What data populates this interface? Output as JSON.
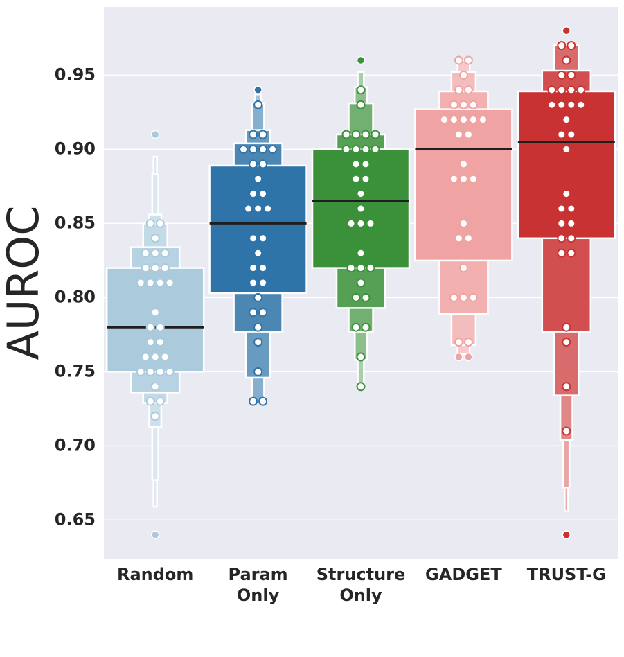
{
  "chart_data": {
    "type": "boxen",
    "ylabel": "AUROC",
    "categories": [
      "Random",
      "Param Only",
      "Structure Only",
      "GADGET",
      "TRUST-G"
    ],
    "ylim": [
      0.624,
      0.996
    ],
    "yticks": [
      0.65,
      {
        "value": 0.7,
        "label": "0.70"
      },
      0.75,
      {
        "value": 0.8,
        "label": "0.80"
      },
      0.85,
      {
        "value": 0.9,
        "label": "0.90"
      },
      0.95
    ],
    "grid": true,
    "boxes": [
      {
        "color": "#abcbdd",
        "median": 0.78,
        "levels": [
          [
            0.75,
            0.82
          ],
          [
            0.736,
            0.834
          ],
          [
            0.729,
            0.85
          ],
          [
            0.713,
            0.856
          ],
          [
            0.677,
            0.883
          ],
          [
            0.659,
            0.895
          ]
        ],
        "points": [
          0.91,
          0.85,
          0.85,
          0.84,
          0.83,
          0.83,
          0.83,
          0.82,
          0.82,
          0.82,
          0.81,
          0.81,
          0.81,
          0.81,
          0.79,
          0.78,
          0.78,
          0.77,
          0.77,
          0.76,
          0.76,
          0.76,
          0.75,
          0.75,
          0.75,
          0.75,
          0.74,
          0.73,
          0.73,
          0.72,
          0.64
        ]
      },
      {
        "color": "#2f74a8",
        "median": 0.85,
        "levels": [
          [
            0.803,
            0.889
          ],
          [
            0.777,
            0.904
          ],
          [
            0.746,
            0.913
          ],
          [
            0.73,
            0.931
          ],
          [
            0.73,
            0.937
          ]
        ],
        "points": [
          0.94,
          0.93,
          0.91,
          0.91,
          0.9,
          0.9,
          0.9,
          0.9,
          0.89,
          0.89,
          0.88,
          0.87,
          0.87,
          0.86,
          0.86,
          0.86,
          0.84,
          0.84,
          0.83,
          0.82,
          0.82,
          0.81,
          0.81,
          0.8,
          0.79,
          0.79,
          0.78,
          0.77,
          0.75,
          0.73,
          0.73
        ]
      },
      {
        "color": "#3b913a",
        "median": 0.865,
        "levels": [
          [
            0.82,
            0.9
          ],
          [
            0.793,
            0.91
          ],
          [
            0.777,
            0.931
          ],
          [
            0.758,
            0.942
          ],
          [
            0.74,
            0.952
          ]
        ],
        "points": [
          0.96,
          0.94,
          0.93,
          0.91,
          0.91,
          0.91,
          0.91,
          0.9,
          0.9,
          0.9,
          0.9,
          0.89,
          0.89,
          0.88,
          0.88,
          0.87,
          0.86,
          0.85,
          0.85,
          0.85,
          0.83,
          0.82,
          0.82,
          0.82,
          0.81,
          0.8,
          0.8,
          0.78,
          0.78,
          0.76,
          0.74
        ]
      },
      {
        "color": "#f0a3a3",
        "median": 0.9,
        "levels": [
          [
            0.825,
            0.927
          ],
          [
            0.789,
            0.939
          ],
          [
            0.768,
            0.952
          ],
          [
            0.762,
            0.96
          ]
        ],
        "points": [
          0.96,
          0.96,
          0.95,
          0.94,
          0.94,
          0.93,
          0.93,
          0.93,
          0.92,
          0.92,
          0.92,
          0.92,
          0.92,
          0.91,
          0.91,
          0.89,
          0.88,
          0.88,
          0.88,
          0.85,
          0.84,
          0.84,
          0.82,
          0.8,
          0.8,
          0.8,
          0.77,
          0.77,
          0.76,
          0.76
        ]
      },
      {
        "color": "#c93232",
        "median": 0.905,
        "levels": [
          [
            0.84,
            0.939
          ],
          [
            0.777,
            0.953
          ],
          [
            0.734,
            0.97
          ],
          [
            0.704,
            0.97
          ],
          [
            0.672,
            0.97
          ],
          [
            0.656,
            0.97
          ]
        ],
        "points": [
          0.98,
          0.97,
          0.97,
          0.96,
          0.95,
          0.95,
          0.94,
          0.94,
          0.94,
          0.94,
          0.93,
          0.93,
          0.93,
          0.93,
          0.92,
          0.91,
          0.91,
          0.9,
          0.87,
          0.86,
          0.86,
          0.85,
          0.85,
          0.84,
          0.84,
          0.83,
          0.83,
          0.78,
          0.77,
          0.74,
          0.71,
          0.64
        ]
      }
    ]
  }
}
